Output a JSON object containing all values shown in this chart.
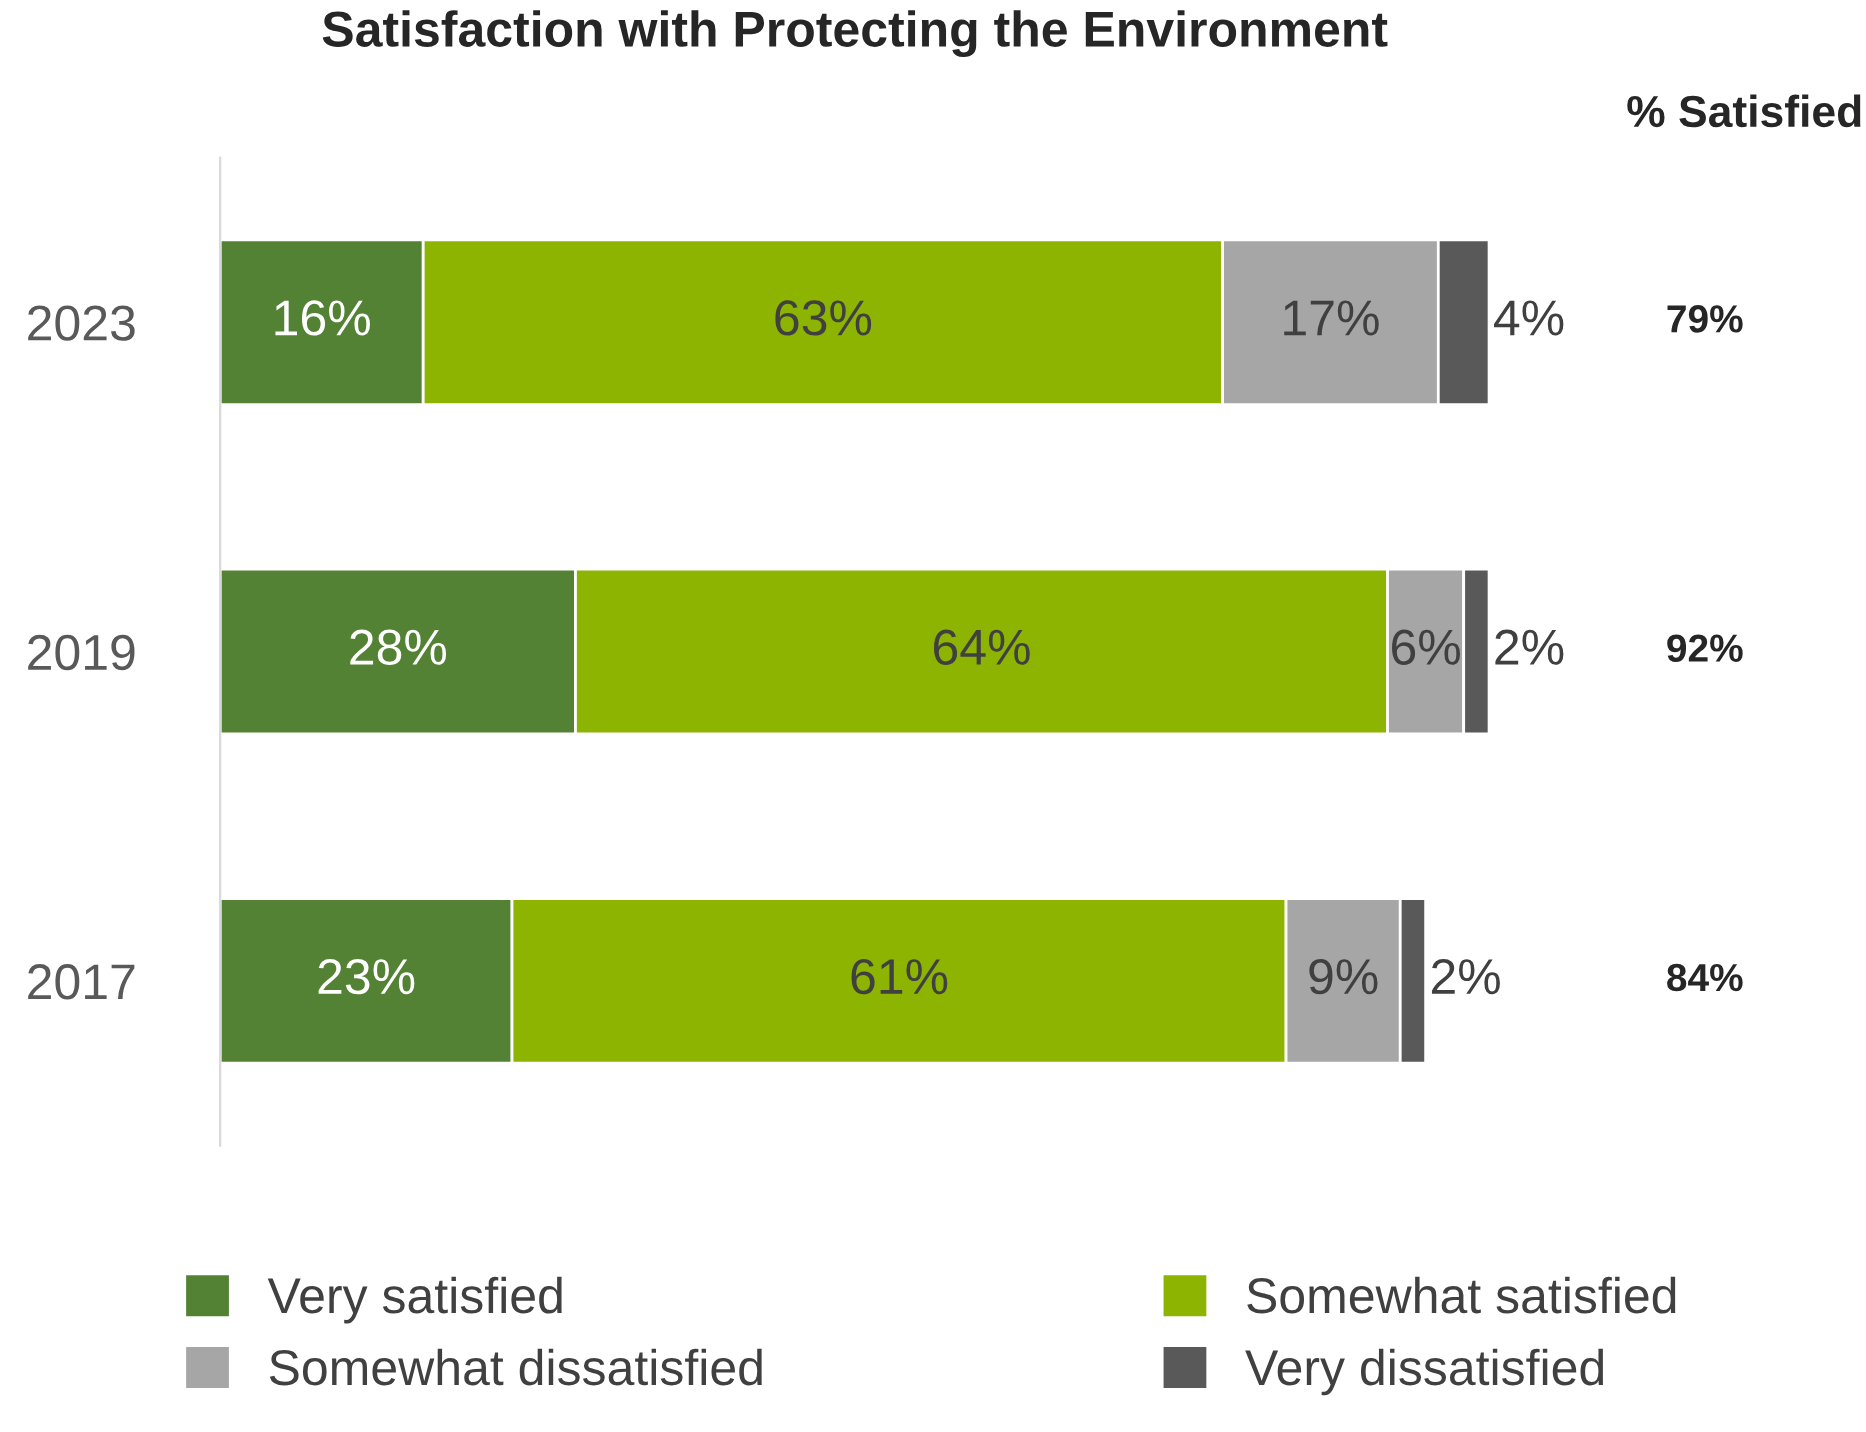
{
  "chart_data": {
    "type": "bar",
    "orientation": "horizontal",
    "stacked": true,
    "title": "Satisfaction with Protecting the Environment",
    "categories": [
      "2023",
      "2019",
      "2017"
    ],
    "series": [
      {
        "name": "Very satisfied",
        "color": "#548235",
        "values": [
          16,
          28,
          23
        ],
        "value_labels": [
          "16%",
          "28%",
          "23%"
        ]
      },
      {
        "name": "Somewhat satisfied",
        "color": "#8db400",
        "values": [
          63,
          64,
          61
        ],
        "value_labels": [
          "63%",
          "64%",
          "61%"
        ]
      },
      {
        "name": "Somewhat dissatisfied",
        "color": "#a6a6a6",
        "values": [
          17,
          6,
          9
        ],
        "value_labels": [
          "17%",
          "6%",
          "9%"
        ]
      },
      {
        "name": "Very dissatisfied",
        "color": "#595959",
        "values": [
          4,
          2,
          2
        ],
        "value_labels": [
          "4%",
          "2%",
          "2%"
        ]
      }
    ],
    "legend": "bottom",
    "grid": false,
    "annotations": [
      "% Satisfied",
      "79%",
      "92%",
      "84%"
    ]
  }
}
